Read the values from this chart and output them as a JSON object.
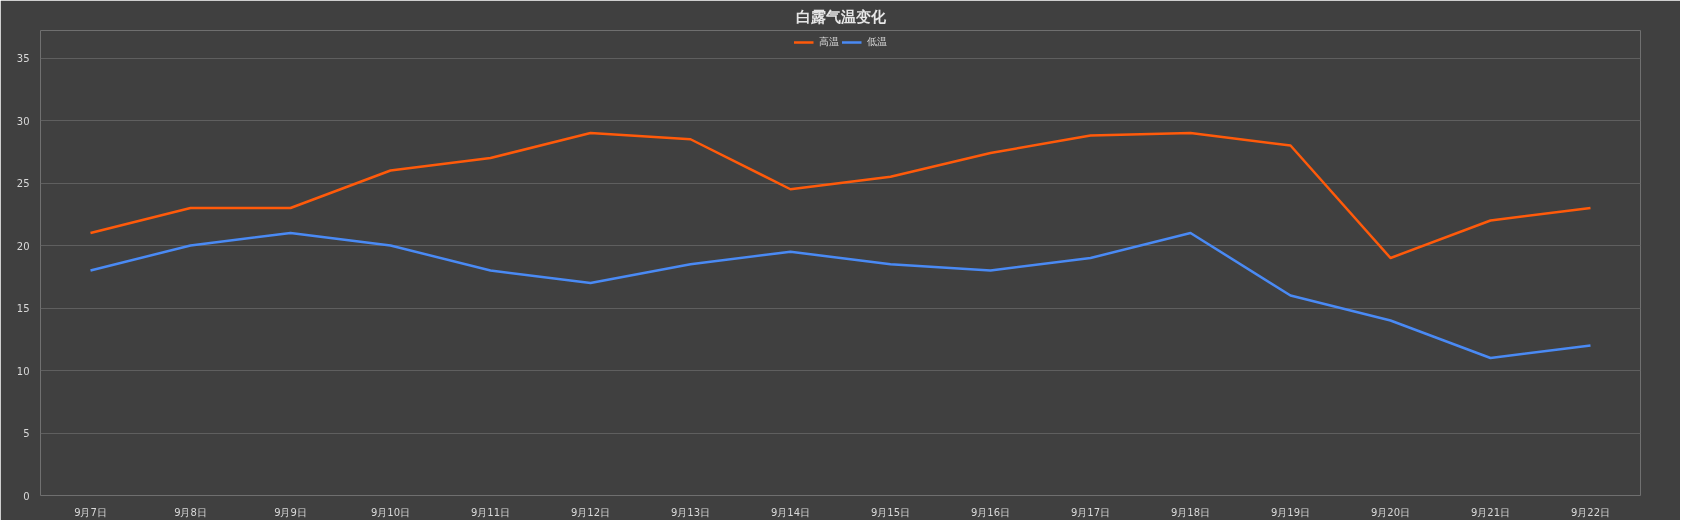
{
  "chart_data": {
    "type": "line",
    "title": "白露气温变化",
    "categories": [
      "9月7日",
      "9月8日",
      "9月9日",
      "9月10日",
      "9月11日",
      "9月12日",
      "9月13日",
      "9月14日",
      "9月15日",
      "9月16日",
      "9月17日",
      "9月18日",
      "9月19日",
      "9月20日",
      "9月21日",
      "9月22日"
    ],
    "series": [
      {
        "name": "高温",
        "color": "#ff5a0a",
        "values": [
          21,
          23,
          23,
          26,
          27,
          29,
          28.5,
          24.5,
          25.5,
          27.4,
          28.8,
          29,
          28,
          19,
          22,
          23
        ]
      },
      {
        "name": "低温",
        "color": "#4a8af4",
        "values": [
          18,
          20,
          21,
          20,
          18,
          17,
          18.5,
          19.5,
          18.5,
          18,
          19,
          21,
          16,
          14,
          11,
          12
        ]
      }
    ],
    "ylim": [
      0,
      35
    ],
    "yticks": [
      0,
      5,
      10,
      15,
      20,
      25,
      30,
      35
    ],
    "grid": "y",
    "legend": "top",
    "marker": "none",
    "line_style": "solid"
  }
}
